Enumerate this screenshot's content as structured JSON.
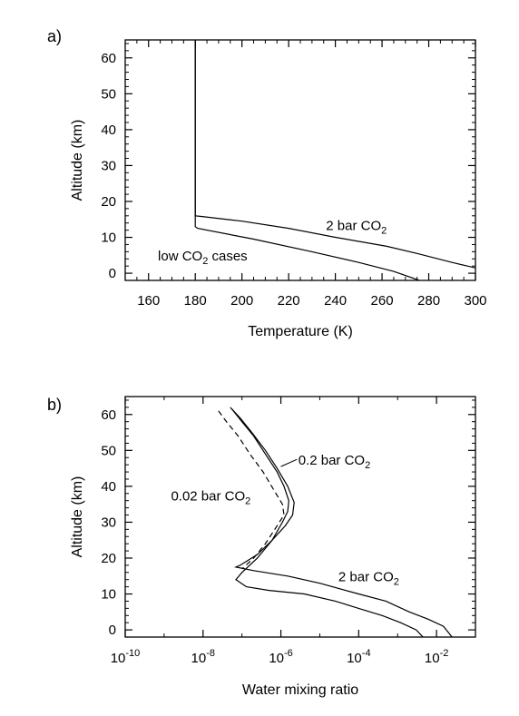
{
  "chart_data": [
    {
      "panel_label": "a)",
      "type": "line",
      "xlabel": "Temperature (K)",
      "ylabel": "Altitude (km)",
      "xlim": [
        150,
        300
      ],
      "ylim": [
        -2,
        65
      ],
      "xticks": [
        160,
        180,
        200,
        220,
        240,
        260,
        280,
        300
      ],
      "yticks": [
        0,
        10,
        20,
        30,
        40,
        50,
        60
      ],
      "series": [
        {
          "name": "low CO2 cases",
          "dashed": false,
          "points": [
            [
              276,
              -2
            ],
            [
              265,
              0.5
            ],
            [
              250,
              3
            ],
            [
              230,
              6
            ],
            [
              205,
              9.5
            ],
            [
              181,
              12.5
            ],
            [
              180,
              13
            ],
            [
              180,
              65
            ]
          ]
        },
        {
          "name": "2 bar CO2",
          "dashed": false,
          "points": [
            [
              300,
              1.5
            ],
            [
              290,
              3
            ],
            [
              275,
              5.5
            ],
            [
              262,
              7.5
            ],
            [
              240,
              10
            ],
            [
              220,
              12.5
            ],
            [
              200,
              14.5
            ],
            [
              183,
              15.8
            ],
            [
              180,
              16
            ],
            [
              180,
              65
            ]
          ]
        }
      ],
      "annotations": [
        {
          "text_before": "2 bar CO",
          "subscript": "2",
          "text_after": "",
          "x": 236,
          "y": 12
        },
        {
          "text_before": "low CO",
          "subscript": "2",
          "text_after": " cases",
          "x": 164,
          "y": 3.5
        }
      ]
    },
    {
      "panel_label": "b)",
      "type": "line",
      "xscale": "log",
      "xlabel": "Water mixing ratio",
      "ylabel": "Altitude (km)",
      "xlim": [
        1e-10,
        0.1
      ],
      "ylim": [
        -2,
        65
      ],
      "xticks": [
        {
          "value": 1e-10,
          "base": "10",
          "exp": "-10"
        },
        {
          "value": 1e-08,
          "base": "10",
          "exp": "-8"
        },
        {
          "value": 1e-06,
          "base": "10",
          "exp": "-6"
        },
        {
          "value": 0.0001,
          "base": "10",
          "exp": "-4"
        },
        {
          "value": 0.01,
          "base": "10",
          "exp": "-2"
        }
      ],
      "yticks": [
        0,
        10,
        20,
        30,
        40,
        50,
        60
      ],
      "series": [
        {
          "name": "0.02 bar CO2",
          "dashed": true,
          "points": [
            [
              2.5e-08,
              61
            ],
            [
              4e-08,
              58
            ],
            [
              8e-08,
              54
            ],
            [
              1.6e-07,
              49
            ],
            [
              3.5e-07,
              44
            ],
            [
              7e-07,
              38.5
            ],
            [
              1.1e-06,
              35
            ],
            [
              1.2e-06,
              32
            ],
            [
              8e-07,
              29
            ],
            [
              4e-07,
              24
            ],
            [
              2e-07,
              20
            ],
            [
              1e-07,
              17
            ]
          ]
        },
        {
          "name": "0.2 bar CO2",
          "dashed": false,
          "points": [
            [
              5.5e-08,
              61.5
            ],
            [
              1e-07,
              58
            ],
            [
              2e-07,
              54
            ],
            [
              4e-07,
              49
            ],
            [
              8e-07,
              44
            ],
            [
              1.2e-06,
              40
            ],
            [
              1.6e-06,
              36
            ],
            [
              1.5e-06,
              33
            ],
            [
              1.1e-06,
              30
            ],
            [
              6e-07,
              25
            ],
            [
              2.5e-07,
              20
            ],
            [
              1e-07,
              16
            ],
            [
              7e-08,
              14
            ],
            [
              1.3e-07,
              12
            ],
            [
              5e-07,
              11
            ],
            [
              4e-06,
              10
            ],
            [
              2.5e-05,
              8
            ],
            [
              0.0001,
              6
            ],
            [
              0.0004,
              4
            ],
            [
              0.0012,
              2
            ],
            [
              0.003,
              0
            ],
            [
              0.0045,
              -2
            ]
          ]
        },
        {
          "name": "2 bar CO2",
          "dashed": false,
          "points": [
            [
              5e-08,
              62
            ],
            [
              9e-08,
              59
            ],
            [
              1.8e-07,
              55
            ],
            [
              4e-07,
              50
            ],
            [
              8e-07,
              45
            ],
            [
              1.5e-06,
              40
            ],
            [
              2.2e-06,
              35.5
            ],
            [
              2e-06,
              32
            ],
            [
              1.3e-06,
              29
            ],
            [
              6e-07,
              25
            ],
            [
              2.5e-07,
              21
            ],
            [
              9e-08,
              18
            ],
            [
              7e-08,
              17.5
            ],
            [
              2e-07,
              16.5
            ],
            [
              1.5e-06,
              15
            ],
            [
              1e-05,
              13
            ],
            [
              0.0001,
              10
            ],
            [
              0.0005,
              8
            ],
            [
              0.002,
              5
            ],
            [
              0.006,
              3
            ],
            [
              0.015,
              1
            ],
            [
              0.025,
              -2
            ]
          ]
        }
      ],
      "annotations": [
        {
          "text_before": "0.2 bar CO",
          "subscript": "2",
          "text_after": "",
          "x": 2.8e-06,
          "y": 46
        },
        {
          "text_before": "0.02 bar CO",
          "subscript": "2",
          "text_after": "",
          "x": 1.5e-09,
          "y": 36
        },
        {
          "text_before": "2 bar CO",
          "subscript": "2",
          "text_after": "",
          "x": 3e-05,
          "y": 13.5
        }
      ]
    }
  ]
}
